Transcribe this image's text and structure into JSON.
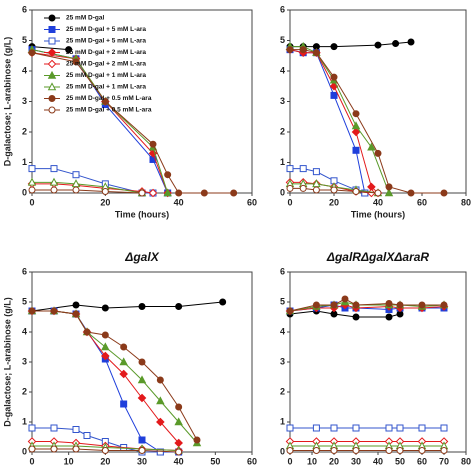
{
  "chart_data": [
    {
      "type": "line",
      "xlabel": "Time (hours)",
      "ylabel": "D-galactose; L-arabinose (g/L)",
      "xlim": [
        0,
        60
      ],
      "xticks": [
        0,
        20,
        40,
        60
      ],
      "ylim": [
        0,
        6
      ],
      "yticks": [
        0,
        1,
        2,
        3,
        4,
        5,
        6
      ],
      "series": [
        {
          "name": "25 mM D-gal",
          "color": "#000000",
          "marker": "circle",
          "filled": true,
          "x": [
            0,
            10
          ],
          "values": [
            4.8,
            4.7
          ]
        },
        {
          "name": "25 mM D-gal + 5 mM L-ara",
          "color": "#1f3fdb",
          "marker": "square",
          "filled": true,
          "x": [
            0,
            12,
            20,
            33,
            37
          ],
          "values": [
            4.7,
            4.4,
            2.9,
            1.1,
            0
          ]
        },
        {
          "name": "25 mM D-gal + 5 mM L-ara",
          "color": "#3355cc",
          "marker": "square",
          "filled": false,
          "x": [
            0,
            6,
            12,
            20,
            30,
            33
          ],
          "values": [
            0.8,
            0.8,
            0.6,
            0.3,
            0,
            0
          ]
        },
        {
          "name": "25 mM D-gal + 2 mM L-ara",
          "color": "#e31a1c",
          "marker": "diamond",
          "filled": true,
          "x": [
            0,
            12,
            20,
            33,
            37
          ],
          "values": [
            4.6,
            4.4,
            3.0,
            1.3,
            0
          ]
        },
        {
          "name": "25 mM D-gal + 2 mM L-ara",
          "color": "#e31a1c",
          "marker": "diamond",
          "filled": false,
          "x": [
            0,
            6,
            12,
            20,
            30,
            33
          ],
          "values": [
            0.3,
            0.3,
            0.25,
            0.15,
            0.05,
            0
          ]
        },
        {
          "name": "25 mM D-gal + 1 mM L-ara",
          "color": "#5a9a2a",
          "marker": "triangle",
          "filled": true,
          "x": [
            0,
            12,
            20,
            33,
            37
          ],
          "values": [
            4.7,
            4.4,
            3.0,
            1.5,
            0
          ]
        },
        {
          "name": "25 mM D-gal + 1 mM L-ara",
          "color": "#5a9a2a",
          "marker": "triangle",
          "filled": false,
          "x": [
            0,
            6,
            12,
            20,
            30
          ],
          "values": [
            0.35,
            0.35,
            0.3,
            0.2,
            0
          ]
        },
        {
          "name": "25 mM D-gal + 0.5 mM L-ara",
          "color": "#8b3a1a",
          "marker": "circle",
          "filled": true,
          "x": [
            0,
            12,
            20,
            33,
            37,
            40,
            47,
            55
          ],
          "values": [
            4.6,
            4.3,
            3.0,
            1.6,
            0.6,
            0,
            0,
            0
          ]
        },
        {
          "name": "25 mM D-gal + 0.5 mM L-ara",
          "color": "#8b3a1a",
          "marker": "circle",
          "filled": false,
          "x": [
            0,
            6,
            12,
            20,
            30
          ],
          "values": [
            0.1,
            0.1,
            0.1,
            0.05,
            0
          ]
        }
      ]
    },
    {
      "type": "line",
      "xlabel": "Time (hours)",
      "xlim": [
        0,
        80
      ],
      "xticks": [
        0,
        20,
        40,
        60,
        80
      ],
      "ylim": [
        0,
        6
      ],
      "yticks": [
        0,
        1,
        2,
        3,
        4,
        5,
        6
      ],
      "series": [
        {
          "color": "#000000",
          "marker": "circle",
          "filled": true,
          "x": [
            0,
            6,
            12,
            20,
            40,
            48,
            55
          ],
          "values": [
            4.8,
            4.8,
            4.8,
            4.8,
            4.85,
            4.9,
            4.95
          ]
        },
        {
          "color": "#1f3fdb",
          "marker": "square",
          "filled": true,
          "x": [
            0,
            6,
            12,
            20,
            30,
            34
          ],
          "values": [
            4.7,
            4.6,
            4.6,
            3.2,
            1.4,
            0
          ]
        },
        {
          "color": "#3355cc",
          "marker": "square",
          "filled": false,
          "x": [
            0,
            6,
            12,
            20,
            30,
            34
          ],
          "values": [
            0.8,
            0.8,
            0.7,
            0.4,
            0.1,
            0
          ]
        },
        {
          "color": "#e31a1c",
          "marker": "diamond",
          "filled": true,
          "x": [
            0,
            6,
            12,
            20,
            30,
            37,
            40
          ],
          "values": [
            4.7,
            4.6,
            4.6,
            3.5,
            2.0,
            0.2,
            0
          ]
        },
        {
          "color": "#e31a1c",
          "marker": "diamond",
          "filled": false,
          "x": [
            0,
            6,
            12,
            20,
            30,
            37
          ],
          "values": [
            0.35,
            0.35,
            0.3,
            0.2,
            0.05,
            0
          ]
        },
        {
          "color": "#5a9a2a",
          "marker": "triangle",
          "filled": true,
          "x": [
            0,
            6,
            12,
            20,
            30,
            37,
            45
          ],
          "values": [
            4.8,
            4.8,
            4.6,
            3.7,
            2.2,
            1.5,
            0
          ]
        },
        {
          "color": "#5a9a2a",
          "marker": "triangle",
          "filled": false,
          "x": [
            0,
            6,
            12,
            20,
            30,
            40
          ],
          "values": [
            0.3,
            0.3,
            0.3,
            0.2,
            0.1,
            0
          ]
        },
        {
          "color": "#8b3a1a",
          "marker": "circle",
          "filled": true,
          "x": [
            0,
            6,
            12,
            20,
            30,
            40,
            45,
            55,
            70
          ],
          "values": [
            4.7,
            4.7,
            4.6,
            3.8,
            2.6,
            1.3,
            0.2,
            0,
            0
          ]
        },
        {
          "color": "#8b3a1a",
          "marker": "circle",
          "filled": false,
          "x": [
            0,
            6,
            12,
            20,
            30,
            40
          ],
          "values": [
            0.15,
            0.15,
            0.1,
            0.1,
            0.05,
            0
          ]
        }
      ]
    },
    {
      "type": "line",
      "title": "ΔgalX",
      "ylabel": "D-galactose; L-arabinose (g/L)",
      "xlim": [
        0,
        60
      ],
      "xticks": [
        0,
        10,
        20,
        30,
        40,
        50,
        60
      ],
      "ylim": [
        0,
        6
      ],
      "yticks": [
        0,
        1,
        2,
        3,
        4,
        5,
        6
      ],
      "series": [
        {
          "color": "#000000",
          "marker": "circle",
          "filled": true,
          "x": [
            0,
            12,
            20,
            30,
            40,
            52
          ],
          "values": [
            4.7,
            4.9,
            4.8,
            4.85,
            4.85,
            5.0
          ]
        },
        {
          "color": "#1f3fdb",
          "marker": "square",
          "filled": true,
          "x": [
            0,
            6,
            12,
            20,
            25,
            30,
            35,
            40
          ],
          "values": [
            4.7,
            4.7,
            4.6,
            3.1,
            1.6,
            0.4,
            0,
            0
          ]
        },
        {
          "color": "#3355cc",
          "marker": "square",
          "filled": false,
          "x": [
            0,
            6,
            12,
            15,
            20,
            25,
            30,
            35
          ],
          "values": [
            0.8,
            0.8,
            0.75,
            0.55,
            0.35,
            0.15,
            0,
            0
          ]
        },
        {
          "color": "#e31a1c",
          "marker": "diamond",
          "filled": true,
          "x": [
            0,
            6,
            12,
            15,
            20,
            25,
            30,
            35,
            40
          ],
          "values": [
            4.7,
            4.7,
            4.6,
            4.0,
            3.2,
            2.6,
            1.8,
            1.0,
            0.3
          ]
        },
        {
          "color": "#e31a1c",
          "marker": "diamond",
          "filled": false,
          "x": [
            0,
            6,
            12,
            20,
            30,
            40
          ],
          "values": [
            0.35,
            0.35,
            0.3,
            0.2,
            0.1,
            0.05
          ]
        },
        {
          "color": "#5a9a2a",
          "marker": "triangle",
          "filled": true,
          "x": [
            0,
            6,
            12,
            15,
            20,
            25,
            30,
            35,
            40,
            45
          ],
          "values": [
            4.7,
            4.7,
            4.6,
            4.0,
            3.5,
            3.0,
            2.4,
            1.7,
            1.0,
            0.3
          ]
        },
        {
          "color": "#5a9a2a",
          "marker": "triangle",
          "filled": false,
          "x": [
            0,
            6,
            12,
            20,
            30,
            40
          ],
          "values": [
            0.2,
            0.2,
            0.2,
            0.15,
            0.1,
            0.05
          ]
        },
        {
          "color": "#8b3a1a",
          "marker": "circle",
          "filled": true,
          "x": [
            0,
            6,
            12,
            15,
            20,
            25,
            30,
            35,
            40,
            45
          ],
          "values": [
            4.7,
            4.7,
            4.6,
            4.0,
            3.9,
            3.5,
            3.0,
            2.4,
            1.5,
            0.4
          ]
        },
        {
          "color": "#8b3a1a",
          "marker": "circle",
          "filled": false,
          "x": [
            0,
            6,
            12,
            20,
            30,
            40
          ],
          "values": [
            0.1,
            0.1,
            0.1,
            0.05,
            0.05,
            0
          ]
        }
      ]
    },
    {
      "type": "line",
      "title": "ΔgalRΔgalXΔaraR",
      "xlim": [
        0,
        80
      ],
      "xticks": [
        0,
        10,
        20,
        30,
        40,
        50,
        60,
        70,
        80
      ],
      "ylim": [
        0,
        6
      ],
      "yticks": [
        0,
        1,
        2,
        3,
        4,
        5,
        6
      ],
      "series": [
        {
          "color": "#000000",
          "marker": "circle",
          "filled": true,
          "x": [
            0,
            12,
            20,
            30,
            45,
            50
          ],
          "values": [
            4.6,
            4.7,
            4.6,
            4.5,
            4.5,
            4.6
          ]
        },
        {
          "color": "#1f3fdb",
          "marker": "square",
          "filled": true,
          "x": [
            0,
            12,
            20,
            25,
            30,
            45,
            50,
            60,
            70
          ],
          "values": [
            4.7,
            4.8,
            4.9,
            4.8,
            4.8,
            4.75,
            4.8,
            4.8,
            4.8
          ]
        },
        {
          "color": "#3355cc",
          "marker": "square",
          "filled": false,
          "x": [
            0,
            12,
            20,
            30,
            45,
            50,
            60,
            70
          ],
          "values": [
            0.8,
            0.8,
            0.8,
            0.8,
            0.8,
            0.8,
            0.8,
            0.8
          ]
        },
        {
          "color": "#e31a1c",
          "marker": "diamond",
          "filled": true,
          "x": [
            0,
            12,
            20,
            25,
            30,
            45,
            50,
            60,
            70
          ],
          "values": [
            4.7,
            4.8,
            4.8,
            4.9,
            4.8,
            4.85,
            4.8,
            4.8,
            4.85
          ]
        },
        {
          "color": "#e31a1c",
          "marker": "diamond",
          "filled": false,
          "x": [
            0,
            12,
            20,
            30,
            45,
            50,
            60,
            70
          ],
          "values": [
            0.35,
            0.35,
            0.35,
            0.35,
            0.35,
            0.35,
            0.35,
            0.35
          ]
        },
        {
          "color": "#5a9a2a",
          "marker": "triangle",
          "filled": true,
          "x": [
            0,
            12,
            20,
            25,
            30,
            45,
            50,
            60,
            70
          ],
          "values": [
            4.7,
            4.85,
            4.9,
            5.0,
            4.9,
            4.9,
            4.9,
            4.85,
            4.9
          ]
        },
        {
          "color": "#5a9a2a",
          "marker": "triangle",
          "filled": false,
          "x": [
            0,
            12,
            20,
            30,
            45,
            50,
            60,
            70
          ],
          "values": [
            0.2,
            0.2,
            0.2,
            0.2,
            0.2,
            0.2,
            0.2,
            0.2
          ]
        },
        {
          "color": "#8b3a1a",
          "marker": "circle",
          "filled": true,
          "x": [
            0,
            12,
            20,
            25,
            30,
            45,
            50,
            60,
            70
          ],
          "values": [
            4.7,
            4.9,
            4.9,
            5.1,
            4.9,
            4.95,
            4.9,
            4.9,
            4.9
          ]
        },
        {
          "color": "#8b3a1a",
          "marker": "circle",
          "filled": false,
          "x": [
            0,
            12,
            20,
            30,
            45,
            50,
            60,
            70
          ],
          "values": [
            0.05,
            0.05,
            0.05,
            0.05,
            0.05,
            0.05,
            0.05,
            0.05
          ]
        }
      ]
    }
  ]
}
